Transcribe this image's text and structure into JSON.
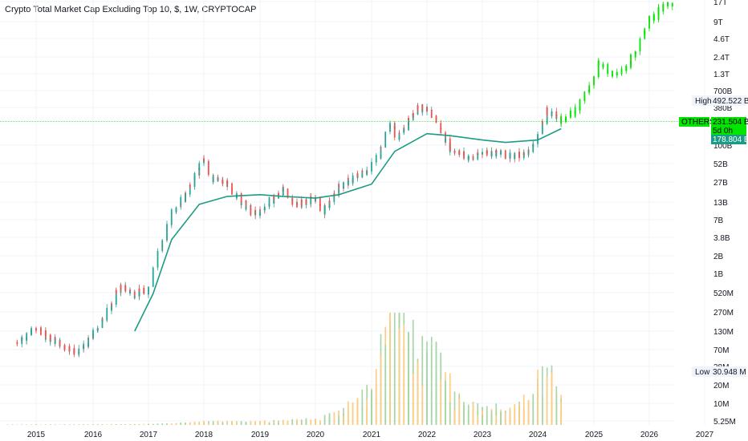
{
  "header": {
    "title": "Crypto Total Market Cap Excluding Top 10, $, 1W, CRYPTOCAP"
  },
  "markers": {
    "high_label": "High",
    "high_value": "492.522 B",
    "low_label": "Low",
    "low_value": "30.948 M",
    "symbol_label": "OTHERS",
    "price_value": "231.504 B",
    "countdown": "5d 0h",
    "ma_value": "178.804 B"
  },
  "colors": {
    "up": "#26a69a",
    "down": "#ef5350",
    "projection": "#00e600",
    "ma": "#1c9c84",
    "vol_up": "#a5d6a7",
    "vol_down": "#ffcc80",
    "grid": "#f0f3fa"
  },
  "chart_data": {
    "type": "line",
    "title": "Crypto Total Market Cap Excluding Top 10, $, 1W, CRYPTOCAP",
    "y_scale": "log",
    "y_ticks": [
      "17T",
      "9T",
      "4.6T",
      "2.4T",
      "1.3T",
      "700B",
      "380B",
      "100B",
      "52B",
      "27B",
      "13B",
      "7B",
      "3.8B",
      "2B",
      "1B",
      "520M",
      "270M",
      "130M",
      "70M",
      "38M",
      "20M",
      "10M",
      "5.25M"
    ],
    "x_ticks": [
      "2015",
      "2016",
      "2017",
      "2018",
      "2019",
      "2020",
      "2021",
      "2022",
      "2023",
      "2024",
      "2025",
      "2026",
      "2027"
    ],
    "series": [
      {
        "role": "price",
        "x": [
          "2014-09",
          "2015-01",
          "2015-06",
          "2015-10",
          "2016-01",
          "2016-05",
          "2016-07",
          "2016-10",
          "2017-01",
          "2017-03",
          "2017-05",
          "2017-06",
          "2017-08",
          "2017-10",
          "2018-01",
          "2018-03",
          "2018-06",
          "2018-09",
          "2018-12",
          "2019-06",
          "2019-09",
          "2020-01",
          "2020-03",
          "2020-06",
          "2020-09",
          "2021-01",
          "2021-03",
          "2021-05",
          "2021-07",
          "2021-11",
          "2022-01",
          "2022-03",
          "2022-06",
          "2022-11",
          "2023-01",
          "2023-07",
          "2023-10",
          "2024-01",
          "2024-03",
          "2024-06"
        ],
        "y": [
          90,
          140,
          85,
          62,
          110,
          330,
          650,
          500,
          560,
          1800,
          4200,
          9000,
          13000,
          22000,
          60000,
          30000,
          25000,
          14000,
          8000,
          20000,
          12000,
          15000,
          9000,
          22000,
          30000,
          45000,
          80000,
          220000,
          130000,
          400000,
          330000,
          260000,
          90000,
          60000,
          80000,
          70000,
          70000,
          120000,
          350000,
          230000
        ]
      },
      {
        "role": "moving-average",
        "x": [
          "2016-10",
          "2017-02",
          "2017-06",
          "2017-12",
          "2018-06",
          "2019-01",
          "2019-06",
          "2020-01",
          "2020-06",
          "2021-01",
          "2021-06",
          "2022-01",
          "2022-06",
          "2023-01",
          "2023-06",
          "2024-01",
          "2024-06"
        ],
        "y": [
          130,
          500,
          3500,
          12000,
          16000,
          17000,
          16000,
          15000,
          17000,
          25000,
          80000,
          150000,
          140000,
          120000,
          110000,
          120000,
          178804
        ]
      },
      {
        "role": "projection",
        "x": [
          "2024-06",
          "2024-09",
          "2024-11",
          "2025-01",
          "2025-02",
          "2025-05",
          "2025-07",
          "2025-10",
          "2026-01",
          "2026-04",
          "2026-06"
        ],
        "y": [
          231504,
          330000,
          550000,
          1000000,
          2000000,
          1300000,
          1300000,
          2800000,
          9000000,
          14000000,
          17000000
        ]
      },
      {
        "role": "volume",
        "x": [
          "2015",
          "2016",
          "2017",
          "2018",
          "2019",
          "2020",
          "2020-09",
          "2021-02",
          "2021-05",
          "2021-08",
          "2021-11",
          "2022-03",
          "2022-06",
          "2022-09",
          "2023-01",
          "2023-06",
          "2023-10",
          "2024-01",
          "2024-03",
          "2024-06"
        ],
        "y": [
          0.5,
          0.6,
          1,
          4,
          4,
          7,
          25,
          70,
          160,
          120,
          90,
          80,
          50,
          25,
          20,
          20,
          25,
          55,
          80,
          40
        ]
      }
    ]
  }
}
